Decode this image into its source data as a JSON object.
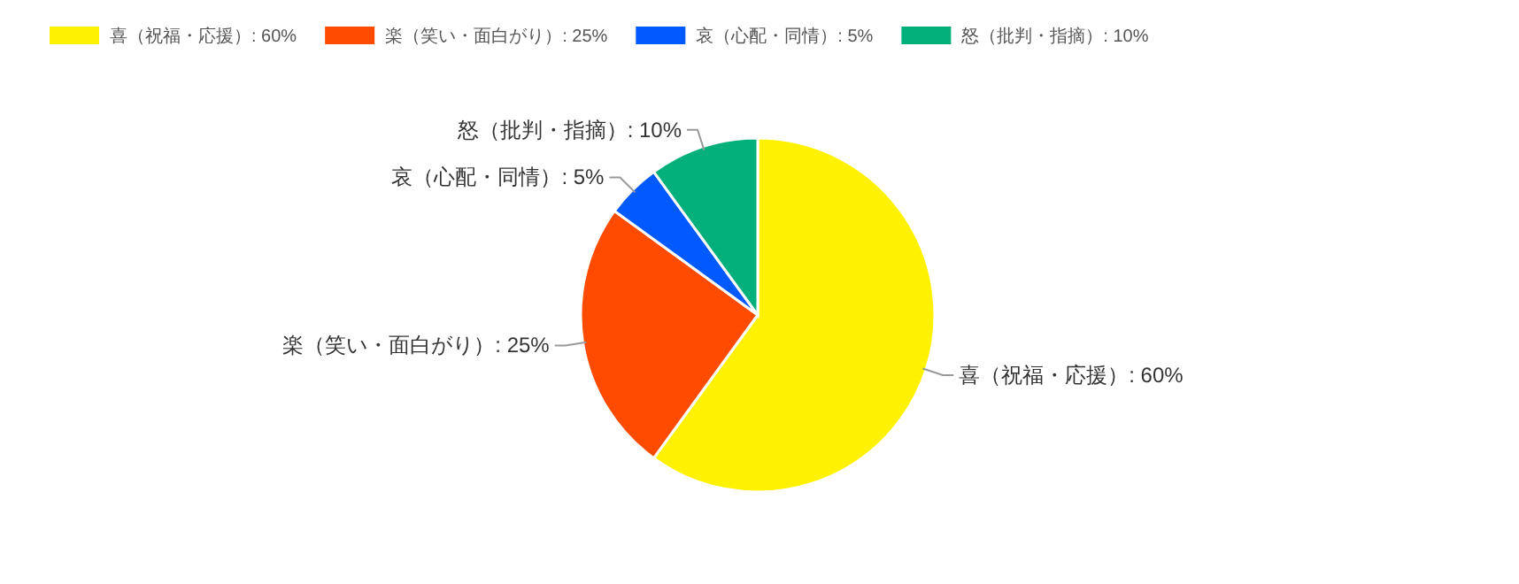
{
  "chart_data": {
    "type": "pie",
    "categories": [
      "喜（祝福・応援）",
      "楽（笑い・面白がり）",
      "哀（心配・同情）",
      "怒（批判・指摘）"
    ],
    "values": [
      60,
      25,
      5,
      10
    ],
    "value_labels": [
      "60%",
      "25%",
      "5%",
      "10%"
    ],
    "colors": [
      "#fff200",
      "#ff4b00",
      "#005aff",
      "#03af7a"
    ],
    "legend": "top"
  }
}
